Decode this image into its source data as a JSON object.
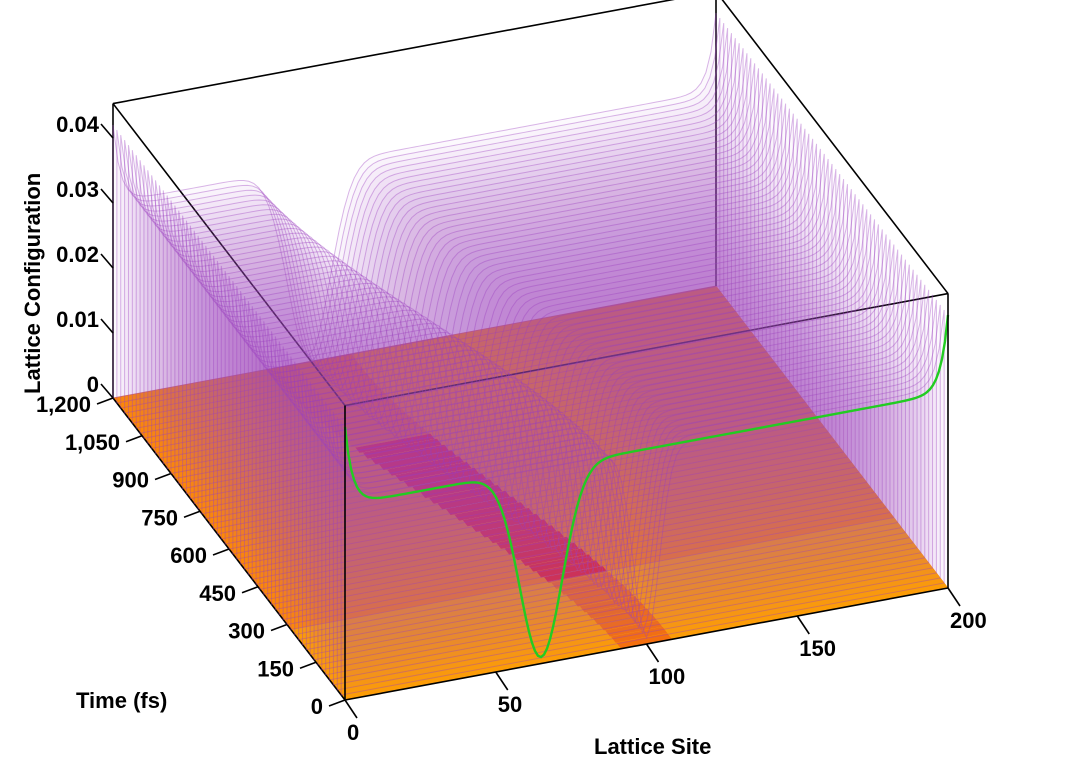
{
  "chart_data": {
    "type": "surface3d",
    "title": "",
    "x_axis": {
      "label": "Lattice Site",
      "range": [
        0,
        200
      ],
      "ticks": [
        "0",
        "50",
        "100",
        "150",
        "200"
      ]
    },
    "y_axis": {
      "label": "Time (fs)",
      "range": [
        0,
        1200
      ],
      "ticks": [
        "0",
        "150",
        "300",
        "450",
        "600",
        "750",
        "900",
        "1,050",
        "1,200"
      ]
    },
    "z_axis": {
      "label": "Lattice Configuration",
      "range": [
        0,
        0.04
      ],
      "ticks": [
        "0",
        "0.01",
        "0.02",
        "0.03",
        "0.04"
      ]
    },
    "profile": {
      "baseline": 0.03,
      "edge_rise": 0.012,
      "initial_soliton": {
        "center_site": 100,
        "width_sites": 6,
        "depth": 0.029
      },
      "final_soliton": {
        "center_site": 65,
        "width_sites": 10,
        "depth": 0.03
      },
      "left_kink_site": 90,
      "drift_start_time_fs": 0,
      "drift_end_time_fs": 1200
    },
    "highlight_time_fs": 1200,
    "colors": {
      "surface": "#b45ad2",
      "surface_stroke": "#9a3ec0",
      "highlight_line": "#22cc22",
      "box": "#000000",
      "heat_low": "#ffdd33",
      "heat_mid": "#ff8a00",
      "heat_high": "#e8001a"
    },
    "grid": false,
    "legend": "none"
  }
}
